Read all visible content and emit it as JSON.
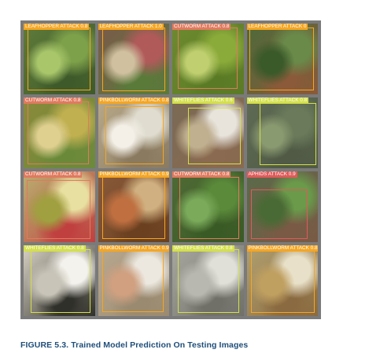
{
  "figure": {
    "caption": "FIGURE 5.3. Trained Model Prediction On Testing Images",
    "tiles": [
      {
        "label": "LEAFHOPPER ATTACK 0.8",
        "color": "#f5a623",
        "bg": "#5f7a3a"
      },
      {
        "label": "LEAFHOPPER ATTACK 1.0",
        "color": "#f5a623",
        "bg": "#7b5a4a"
      },
      {
        "label": "CUTWORM ATTACK 0.8",
        "color": "#e07a5f",
        "bg": "#6d8a2f"
      },
      {
        "label": "LEAFHOPPER ATTACK 0",
        "color": "#f5a623",
        "bg": "#4d6a3a"
      },
      {
        "label": "CUTWORM ATTACK 0.8",
        "color": "#e07a5f",
        "bg": "#8a8a3a"
      },
      {
        "label": "PINKBOLLWORM ATTACK 0.8",
        "color": "#f5a623",
        "bg": "#b8a98a"
      },
      {
        "label": "WHITEFLIES ATTACK 0.6",
        "color": "#d4e04a",
        "bg": "#7a6a55"
      },
      {
        "label": "WHITEFLIES ATTACK 0.8",
        "color": "#d4e04a",
        "bg": "#5f6b55"
      },
      {
        "label": "CUTWORM ATTACK 0.8",
        "color": "#e07a5f",
        "bg": "#b8b070"
      },
      {
        "label": "PINKBOLLWORM ATTACK 0.9",
        "color": "#f5a623",
        "bg": "#8a5a3a"
      },
      {
        "label": "CUTWORM ATTACK 0.8",
        "color": "#e07a5f",
        "bg": "#4f6a35"
      },
      {
        "label": "APHIDS ATTACK 0.9",
        "color": "#e05a5a",
        "bg": "#5a6a4a"
      },
      {
        "label": "WHITEFLIES ATTACK 0.8",
        "color": "#d4e04a",
        "bg": "#d8d2c4"
      },
      {
        "label": "PINKBOLLWORM ATTACK 0.9",
        "color": "#f5a623",
        "bg": "#b8a890"
      },
      {
        "label": "WHITEFLIES ATTACK 0.8",
        "color": "#d4e04a",
        "bg": "#a8a8a0"
      },
      {
        "label": "PINKBOLLWORM ATTACK 0.8",
        "color": "#f5a623",
        "bg": "#b0a070"
      }
    ]
  }
}
